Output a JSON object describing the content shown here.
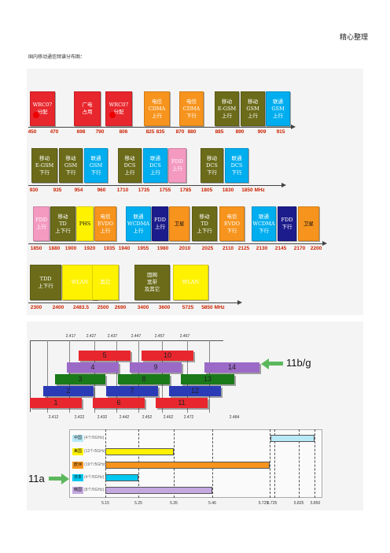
{
  "header": {
    "title": "精心整理"
  },
  "caption": "国内移动通信频谱分布图：",
  "colors": {
    "red": "#e8262d",
    "orange": "#f7941d",
    "olive": "#6b6b1a",
    "skyblue": "#00aeef",
    "pink": "#f49ac1",
    "yellow": "#fff200",
    "navy": "#1c1c8c",
    "purple": "#9b6ac7",
    "green": "#1a7a1a"
  },
  "row1": {
    "blocks": [
      {
        "text": "WRC07\n分配",
        "color": "#e8262d",
        "style": "wt"
      },
      {
        "text": "广电\n占用",
        "color": "#e8262d",
        "style": "wt"
      },
      {
        "text": "WRC07\n分配",
        "color": "#e8262d",
        "style": "wt"
      },
      {
        "text": "电信\nCDMA\n上行",
        "color": "#f7941d",
        "style": "wt"
      },
      {
        "text": "电信\nCDMA\n下行",
        "color": "#f7941d",
        "style": "wt"
      },
      {
        "text": "移动\nE-GSM\n上行",
        "color": "#6b6b1a",
        "style": "wt"
      },
      {
        "text": "移动\nGSM\n上行",
        "color": "#6b6b1a",
        "style": "wt"
      },
      {
        "text": "联通\nGSM\n上行",
        "color": "#00aeef",
        "style": "wt"
      }
    ],
    "ticks": [
      "450",
      "470",
      "698",
      "790",
      "806",
      "825",
      "835",
      "870",
      "880",
      "885",
      "890",
      "909",
      "915"
    ]
  },
  "row2": {
    "blocks": [
      {
        "text": "移动\nE-GSM\n下行",
        "color": "#6b6b1a",
        "style": "wt"
      },
      {
        "text": "移动\nGSM\n下行",
        "color": "#6b6b1a",
        "style": "wt"
      },
      {
        "text": "联通\nGSM\n下行",
        "color": "#00aeef",
        "style": "wt"
      },
      {
        "text": "移动\nDCS\n上行",
        "color": "#6b6b1a",
        "style": "wt"
      },
      {
        "text": "联通\nDCS\n上行",
        "color": "#00aeef",
        "style": "wt"
      },
      {
        "text": "FDD\n上行",
        "color": "#f49ac1",
        "style": "wt"
      },
      {
        "text": "移动\nDCS\n下行",
        "color": "#6b6b1a",
        "style": "wt"
      },
      {
        "text": "联通\nDCS\n下行",
        "color": "#00aeef",
        "style": "wt"
      }
    ],
    "ticks": [
      "930",
      "935",
      "954",
      "960",
      "1710",
      "1735",
      "1755",
      "1785",
      "1805",
      "1830",
      "1850 MHz"
    ]
  },
  "row3": {
    "blocks": [
      {
        "text": "FDD\n上行",
        "color": "#f49ac1",
        "style": "wt"
      },
      {
        "text": "移动\nTD\n上下行",
        "color": "#6b6b1a",
        "style": "wt"
      },
      {
        "text": "PHS",
        "color": "#fff200",
        "style": "dk"
      },
      {
        "text": "电信\nEVDO\n上行",
        "color": "#f7941d",
        "style": "wt"
      },
      {
        "text": "联通\nWCDMA\n上行",
        "color": "#00aeef",
        "style": "wt"
      },
      {
        "text": "FDD\n上行",
        "color": "#1c1c8c",
        "style": "wt"
      },
      {
        "text": "卫星",
        "color": "#f7941d",
        "style": "dk"
      },
      {
        "text": "移动\nTD\n上下行",
        "color": "#6b6b1a",
        "style": "wt"
      },
      {
        "text": "电信\nEVDO\n下行",
        "color": "#f7941d",
        "style": "wt"
      },
      {
        "text": "联通\nWCDMA\n下行",
        "color": "#00aeef",
        "style": "wt"
      },
      {
        "text": "FDD\n下行",
        "color": "#1c1c8c",
        "style": "wt"
      },
      {
        "text": "卫星",
        "color": "#f7941d",
        "style": "dk"
      }
    ],
    "ticks": [
      "1850",
      "1880",
      "1900",
      "1920",
      "1935",
      "1940",
      "1955",
      "1980",
      "2010",
      "2025",
      "2110",
      "2125",
      "2130",
      "2145",
      "2170",
      "2200"
    ]
  },
  "row4": {
    "blocks": [
      {
        "text": "TDD\n上下行",
        "color": "#6b6b1a",
        "style": "wt"
      },
      {
        "text": "WLAN",
        "color": "#fff200",
        "style": "wt"
      },
      {
        "text": "其它",
        "color": "#fff200",
        "style": "wt"
      },
      {
        "text": "固网\n宽带\n及其它",
        "color": "#6b6b1a",
        "style": "wt"
      },
      {
        "text": "WLAN",
        "color": "#fff200",
        "style": "wt"
      }
    ],
    "ticks": [
      "2300",
      "2400",
      "2483.5",
      "2500",
      "2690",
      "3400",
      "3600",
      "5725",
      "5850 MHz"
    ]
  },
  "wifi": {
    "top_ticks": [
      "2.417",
      "2.427",
      "2.437",
      "2.447",
      "2.457",
      "2.467"
    ],
    "bottom_ticks": [
      "2.412",
      "2.422",
      "2.432",
      "2.442",
      "2.452",
      "2.462",
      "2.472",
      "2.484"
    ],
    "channels": [
      {
        "n": "5",
        "color": "#e8262d"
      },
      {
        "n": "10",
        "color": "#e8262d"
      },
      {
        "n": "4",
        "color": "#9b6ac7"
      },
      {
        "n": "9",
        "color": "#9b6ac7"
      },
      {
        "n": "14",
        "color": "#9b6ac7"
      },
      {
        "n": "3",
        "color": "#1a7a1a"
      },
      {
        "n": "8",
        "color": "#1a7a1a"
      },
      {
        "n": "13",
        "color": "#1a7a1a"
      },
      {
        "n": "2",
        "color": "#2b3bb5"
      },
      {
        "n": "7",
        "color": "#2b3bb5"
      },
      {
        "n": "12",
        "color": "#2b3bb5"
      },
      {
        "n": "1",
        "color": "#e8262d"
      },
      {
        "n": "6",
        "color": "#e8262d"
      },
      {
        "n": "11",
        "color": "#e8262d"
      }
    ],
    "label": "11b/g"
  },
  "a5g": {
    "label": "11a",
    "countries": [
      {
        "name": "中国",
        "sub": "(4个/5GHz)",
        "color": "#b7e9f7"
      },
      {
        "name": "美国",
        "sub": "(12个/5GHz)",
        "color": "#fff200"
      },
      {
        "name": "欧洲",
        "sub": "(19个/5GHz)",
        "color": "#f7941d"
      },
      {
        "name": "日本",
        "sub": "(4个/5GHz)",
        "color": "#00c8f0"
      },
      {
        "name": "韩国",
        "sub": "(8个/5GHz)",
        "color": "#c4a8e0"
      }
    ],
    "ticks": [
      "5.15",
      "5.25",
      "5.35",
      "5.46",
      "5.725",
      "5.725",
      "5.825",
      "5.850"
    ]
  }
}
